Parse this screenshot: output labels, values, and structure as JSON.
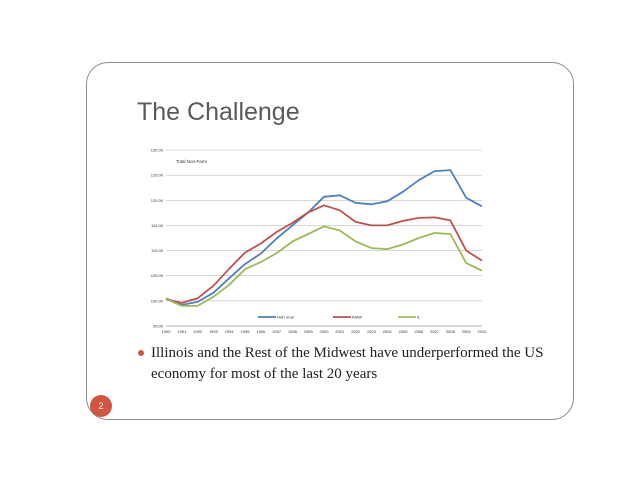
{
  "slide": {
    "title": "The Challenge",
    "bullet": "Illinois and the Rest of the Midwest have underperformed the US economy for most of the last 20 years",
    "page_number": "2",
    "accent_color": "#d1553f"
  },
  "chart_data": {
    "type": "line",
    "title": "Total Non-Farm",
    "xlabel": "",
    "ylabel": "",
    "x": [
      1990,
      1991,
      1992,
      1993,
      1994,
      1995,
      1996,
      1997,
      1998,
      1999,
      2000,
      2001,
      2002,
      2003,
      2004,
      2005,
      2006,
      2007,
      2008,
      2009,
      2010
    ],
    "x_tick_labels": [
      "1990",
      "1991",
      "1992",
      "1993",
      "1994",
      "1995",
      "1996",
      "1997",
      "1998",
      "1999",
      "2000",
      "2001",
      "2002",
      "2003",
      "2004",
      "2005",
      "2006",
      "2007",
      "2008",
      "2009",
      "2010"
    ],
    "ylim": [
      95,
      130
    ],
    "y_ticks": [
      95,
      100,
      105,
      110,
      115,
      120,
      125,
      130
    ],
    "y_tick_labels": [
      "95.00",
      "100.00",
      "105.00",
      "110.00",
      "115.00",
      "120.00",
      "125.00",
      "130.00"
    ],
    "grid": true,
    "legend_position": "bottom",
    "series": [
      {
        "name": "Nat'l onal",
        "color": "#4f81bd",
        "values": [
          100.5,
          99.2,
          99.8,
          101.6,
          104.5,
          107.3,
          109.4,
          112.4,
          115.0,
          117.6,
          120.7,
          121.0,
          119.5,
          119.2,
          119.8,
          121.7,
          124.0,
          125.8,
          126.0,
          120.5,
          118.8
        ]
      },
      {
        "name": "RMW",
        "color": "#c0504d",
        "values": [
          100.3,
          99.6,
          100.5,
          103.0,
          106.4,
          109.6,
          111.4,
          113.7,
          115.5,
          117.6,
          119.0,
          118.0,
          115.7,
          115.0,
          115.0,
          115.9,
          116.5,
          116.6,
          116.0,
          110.0,
          108.0
        ]
      },
      {
        "name": "IL",
        "color": "#9bbb59",
        "values": [
          100.4,
          99.0,
          99.0,
          100.8,
          103.2,
          106.3,
          107.7,
          109.5,
          111.8,
          113.3,
          114.8,
          114.0,
          111.8,
          110.5,
          110.3,
          111.2,
          112.5,
          113.5,
          113.3,
          107.5,
          106.0
        ]
      }
    ]
  }
}
